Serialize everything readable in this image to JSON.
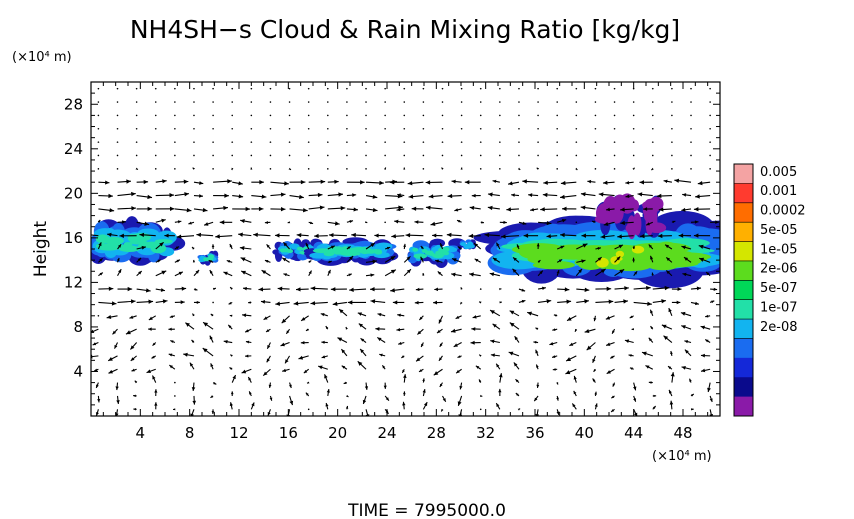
{
  "chart_data": {
    "type": "heatmap",
    "title": "NH4SH−s Cloud & Rain Mixing Ratio [kg/kg]",
    "ylabel": "Height",
    "y_unit": "(×10⁴ m)",
    "x_unit": "(×10⁴ m)",
    "footer": "TIME  =  7995000.0",
    "xlim": [
      0,
      51
    ],
    "ylim": [
      0,
      30
    ],
    "x_ticks": [
      4,
      8,
      12,
      16,
      20,
      24,
      28,
      32,
      36,
      40,
      44,
      48
    ],
    "y_ticks": [
      4,
      8,
      12,
      16,
      20,
      24,
      28
    ],
    "colorbar": {
      "labels": [
        "0.005",
        "0.001",
        "0.0002",
        "5e-05",
        "1e-05",
        "2e-06",
        "5e-07",
        "1e-07",
        "2e-08"
      ],
      "colors": [
        "#f4a3a3",
        "#ff3b2f",
        "#ff6d00",
        "#ffb000",
        "#d4e600",
        "#5cdc1e",
        "#00d858",
        "#22e0a8",
        "#12b4f0",
        "#1a6cf0",
        "#1428d8",
        "#0a0a8c",
        "#8a1aa8"
      ]
    },
    "cloud_regions": [
      {
        "x": [
          0.0,
          6.8
        ],
        "y": [
          14.0,
          17.2
        ],
        "peak": "2e-06"
      },
      {
        "x": [
          8.6,
          10.2
        ],
        "y": [
          13.8,
          14.7
        ],
        "peak": "2e-06"
      },
      {
        "x": [
          15.0,
          18.0
        ],
        "y": [
          14.2,
          15.6
        ],
        "peak": "2e-06"
      },
      {
        "x": [
          18.0,
          24.4
        ],
        "y": [
          14.0,
          15.7
        ],
        "peak": "2e-06"
      },
      {
        "x": [
          25.6,
          29.8
        ],
        "y": [
          13.8,
          15.6
        ],
        "peak": "2e-06"
      },
      {
        "x": [
          30.0,
          31.0
        ],
        "y": [
          15.0,
          15.8
        ],
        "peak": "5e-07"
      },
      {
        "x": [
          33.2,
          51.0
        ],
        "y": [
          13.0,
          17.0
        ],
        "peak": "5e-05"
      },
      {
        "x": [
          41.6,
          46.0
        ],
        "y": [
          16.5,
          19.2
        ],
        "peak": "2e-08"
      }
    ],
    "vectors": "wind field arrows (not labelled)"
  }
}
